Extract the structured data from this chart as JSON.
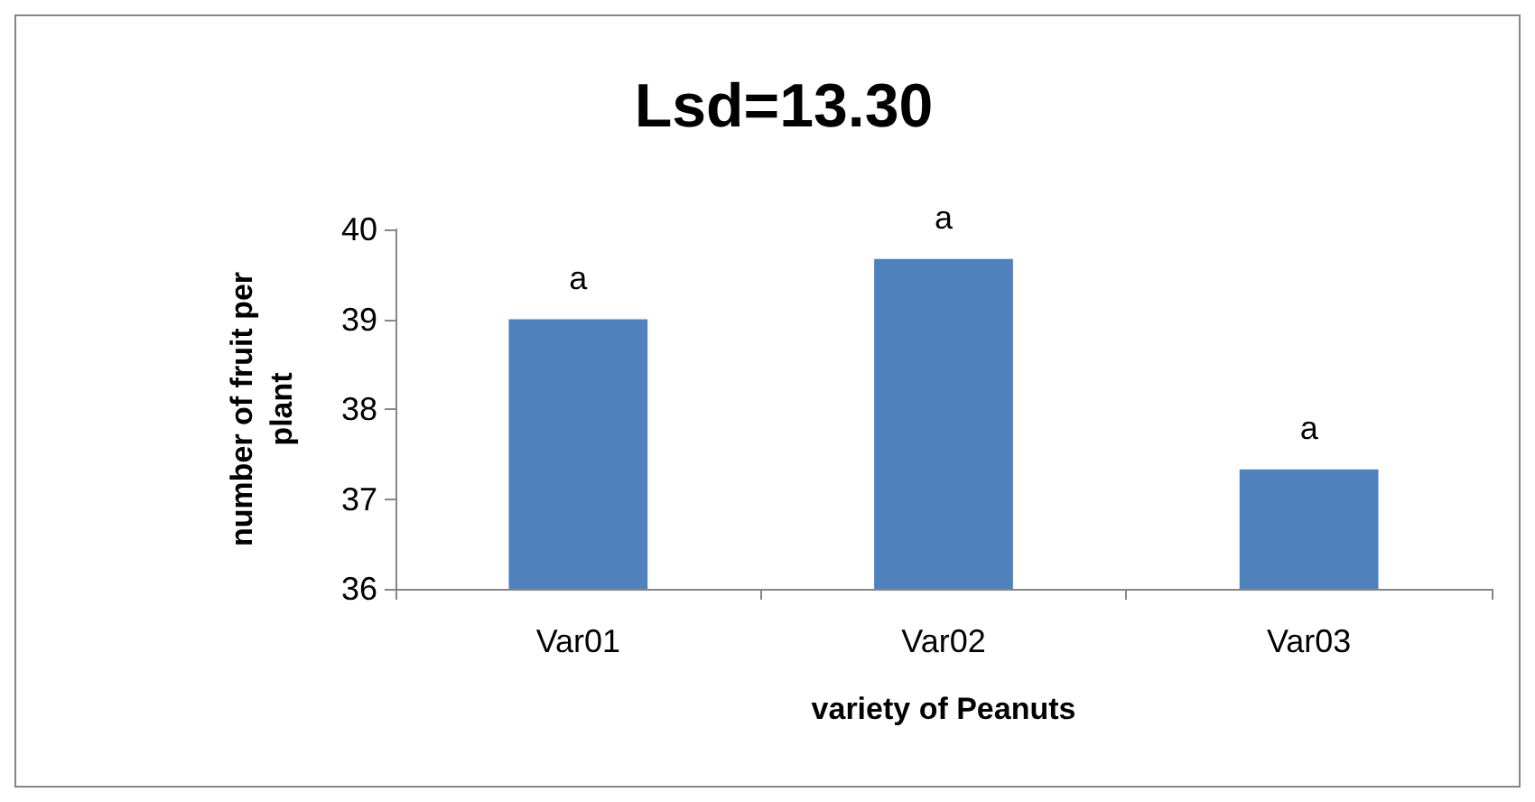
{
  "chart_data": {
    "type": "bar",
    "title": "Lsd=13.30",
    "xlabel": "variety of Peanuts",
    "ylabel": "number of fruit per plant",
    "categories": [
      "Var01",
      "Var02",
      "Var03"
    ],
    "values": [
      39.0,
      39.67,
      37.33
    ],
    "value_labels": [
      "a",
      "a",
      "a"
    ],
    "color": "#4f81bd",
    "ylim": [
      36,
      40
    ],
    "yticks": [
      36,
      37,
      38,
      39,
      40
    ],
    "grid": false
  }
}
